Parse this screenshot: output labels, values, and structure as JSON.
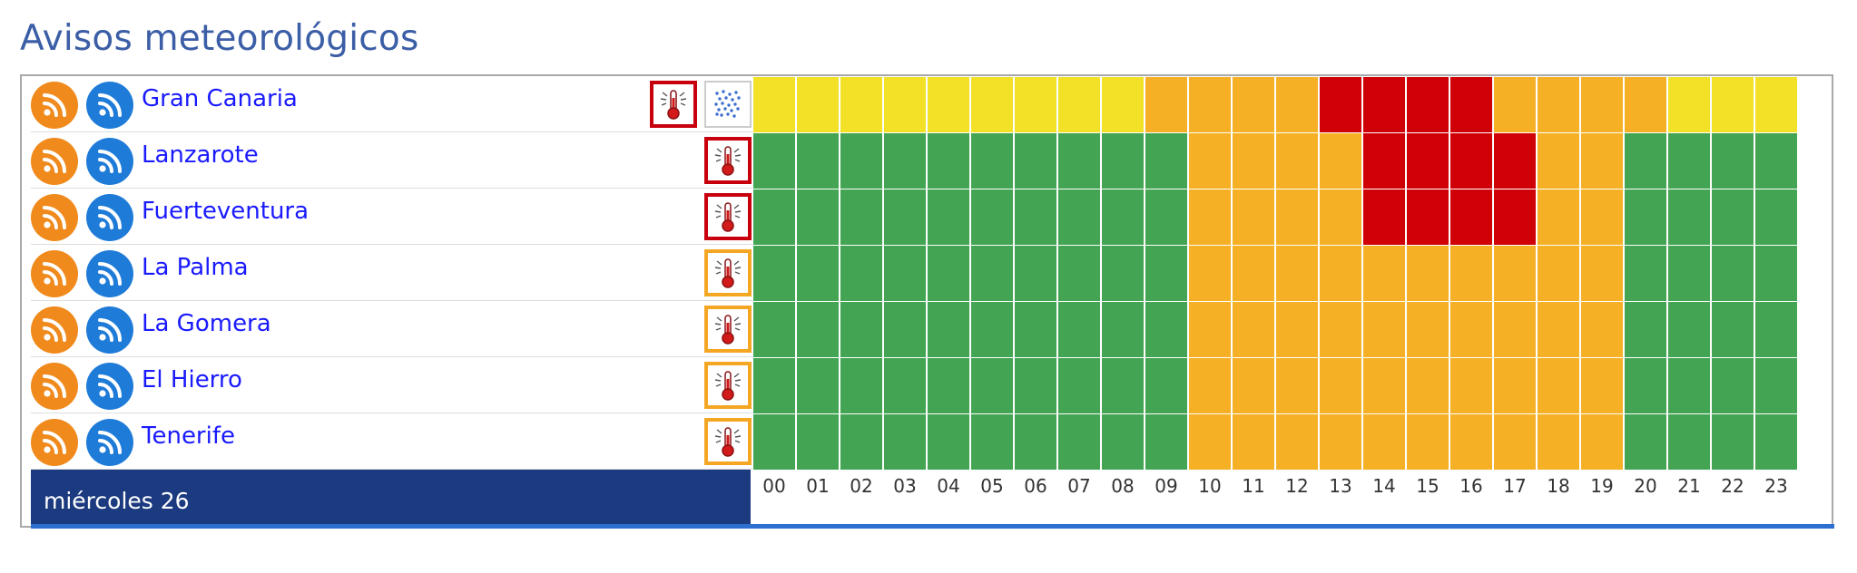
{
  "page": {
    "title": "Avisos meteorológicos"
  },
  "colors": {
    "green": "#43a453",
    "orange": "#f5b025",
    "yellow": "#f2e127",
    "red": "#cf0106"
  },
  "day_label": "miércoles 26",
  "hours": [
    "00",
    "01",
    "02",
    "03",
    "04",
    "05",
    "06",
    "07",
    "08",
    "09",
    "10",
    "11",
    "12",
    "13",
    "14",
    "15",
    "16",
    "17",
    "18",
    "19",
    "20",
    "21",
    "22",
    "23"
  ],
  "zones": [
    {
      "name": "Gran Canaria",
      "icons": [
        {
          "type": "thermometer-icon",
          "level": "red"
        },
        {
          "type": "dust-icon",
          "level": "none"
        }
      ],
      "levels": [
        "y",
        "y",
        "y",
        "y",
        "y",
        "y",
        "y",
        "y",
        "y",
        "o",
        "o",
        "o",
        "o",
        "r",
        "r",
        "r",
        "r",
        "o",
        "o",
        "o",
        "o",
        "y",
        "y",
        "y"
      ]
    },
    {
      "name": "Lanzarote",
      "icons": [
        {
          "type": "thermometer-icon",
          "level": "red"
        }
      ],
      "levels": [
        "g",
        "g",
        "g",
        "g",
        "g",
        "g",
        "g",
        "g",
        "g",
        "g",
        "o",
        "o",
        "o",
        "o",
        "r",
        "r",
        "r",
        "r",
        "o",
        "o",
        "g",
        "g",
        "g",
        "g"
      ]
    },
    {
      "name": "Fuerteventura",
      "icons": [
        {
          "type": "thermometer-icon",
          "level": "red"
        }
      ],
      "levels": [
        "g",
        "g",
        "g",
        "g",
        "g",
        "g",
        "g",
        "g",
        "g",
        "g",
        "o",
        "o",
        "o",
        "o",
        "r",
        "r",
        "r",
        "r",
        "o",
        "o",
        "g",
        "g",
        "g",
        "g"
      ]
    },
    {
      "name": "La Palma",
      "icons": [
        {
          "type": "thermometer-icon",
          "level": "orange"
        }
      ],
      "levels": [
        "g",
        "g",
        "g",
        "g",
        "g",
        "g",
        "g",
        "g",
        "g",
        "g",
        "o",
        "o",
        "o",
        "o",
        "o",
        "o",
        "o",
        "o",
        "o",
        "o",
        "g",
        "g",
        "g",
        "g"
      ]
    },
    {
      "name": "La Gomera",
      "icons": [
        {
          "type": "thermometer-icon",
          "level": "orange"
        }
      ],
      "levels": [
        "g",
        "g",
        "g",
        "g",
        "g",
        "g",
        "g",
        "g",
        "g",
        "g",
        "o",
        "o",
        "o",
        "o",
        "o",
        "o",
        "o",
        "o",
        "o",
        "o",
        "g",
        "g",
        "g",
        "g"
      ]
    },
    {
      "name": "El Hierro",
      "icons": [
        {
          "type": "thermometer-icon",
          "level": "orange"
        }
      ],
      "levels": [
        "g",
        "g",
        "g",
        "g",
        "g",
        "g",
        "g",
        "g",
        "g",
        "g",
        "o",
        "o",
        "o",
        "o",
        "o",
        "o",
        "o",
        "o",
        "o",
        "o",
        "g",
        "g",
        "g",
        "g"
      ]
    },
    {
      "name": "Tenerife",
      "icons": [
        {
          "type": "thermometer-icon",
          "level": "orange"
        }
      ],
      "levels": [
        "g",
        "g",
        "g",
        "g",
        "g",
        "g",
        "g",
        "g",
        "g",
        "g",
        "o",
        "o",
        "o",
        "o",
        "o",
        "o",
        "o",
        "o",
        "o",
        "o",
        "g",
        "g",
        "g",
        "g"
      ]
    }
  ]
}
